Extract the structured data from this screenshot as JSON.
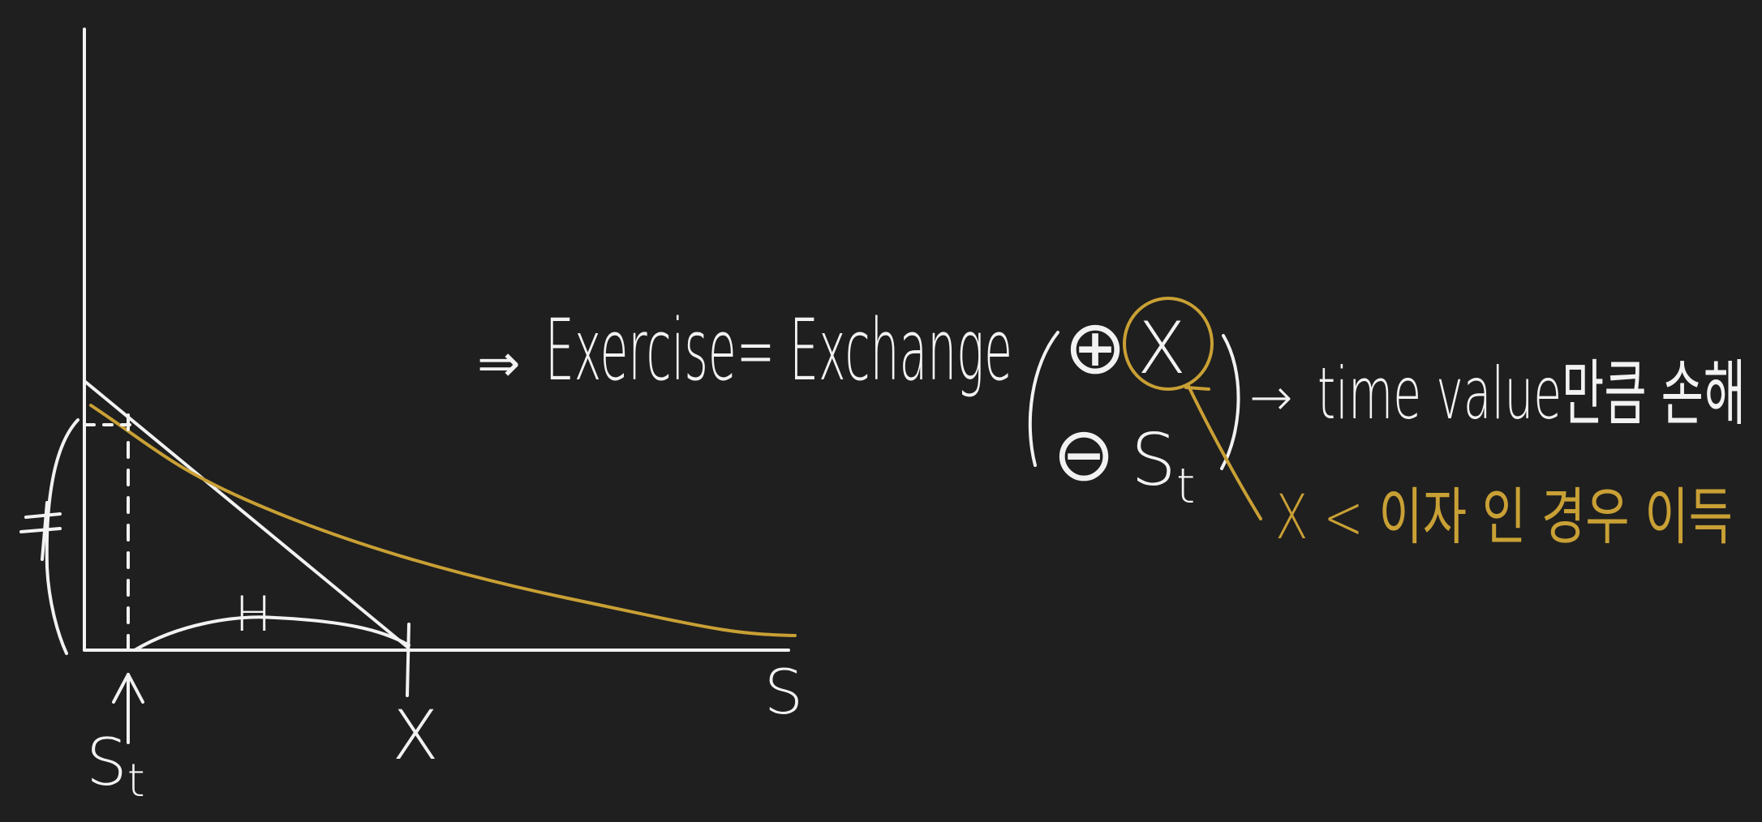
{
  "colors": {
    "background": "#1f1f1f",
    "ink_white": "#f2f2f2",
    "ink_gold": "#c9a035"
  },
  "axes": {
    "x_label": "S",
    "strike_label": "X",
    "st_label_main": "S",
    "st_label_sub": "t"
  },
  "chart_marks": {
    "segment_label": "H",
    "y_marker": "≠"
  },
  "annotations": {
    "arrow_1": "⇒",
    "exercise_text": "Exercise= Exchange",
    "plus_sign": "⊕",
    "plus_term": "X",
    "minus_sign": "⊖",
    "minus_term_main": "S",
    "minus_term_sub": "t",
    "arrow_2": "→",
    "time_value_text": "time value만큼 손해",
    "gold_note": "X < 이자 인 경우 이득"
  }
}
